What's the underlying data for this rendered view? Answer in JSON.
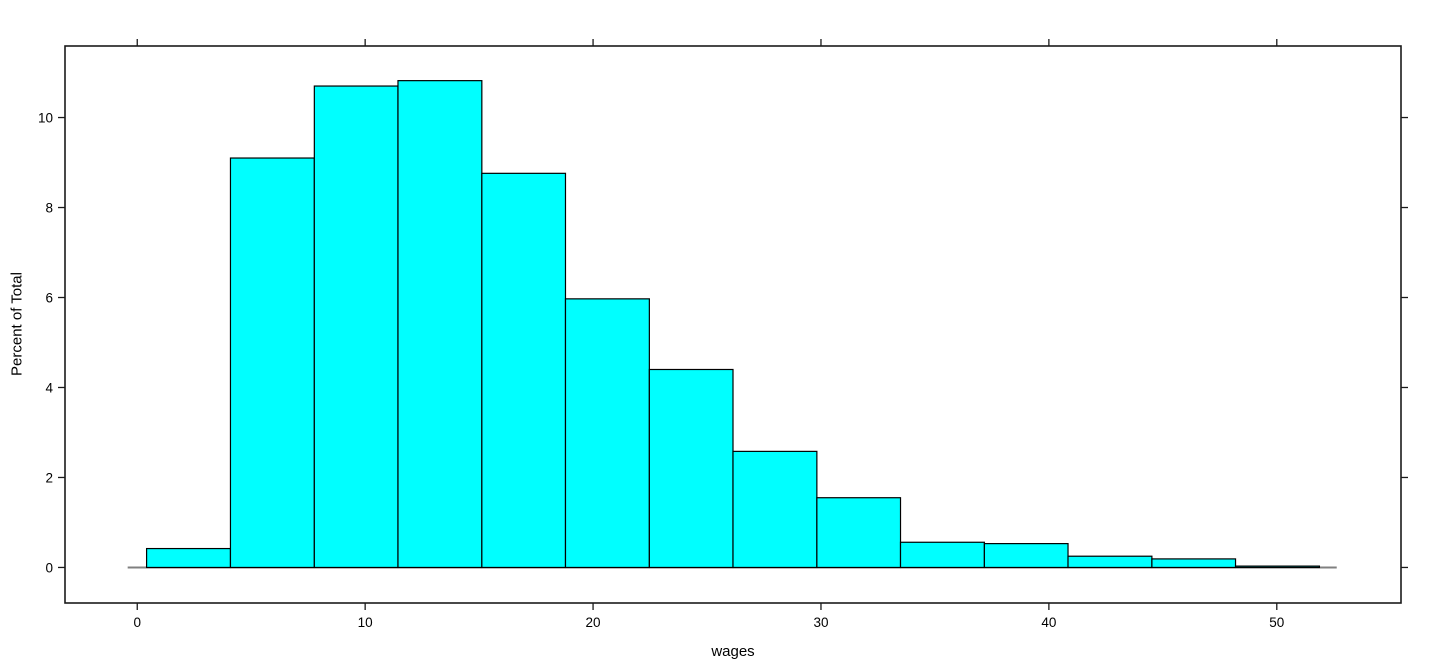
{
  "figure": {
    "background": "#FFFFFF"
  },
  "chart_data": {
    "type": "bar",
    "subtype": "histogram",
    "title": "",
    "xlabel": "wages",
    "ylabel": "Percent of Total",
    "bin_edges": [
      0.41,
      4.09,
      7.77,
      11.44,
      15.12,
      18.79,
      22.47,
      26.14,
      29.82,
      33.49,
      37.17,
      40.84,
      44.52,
      48.19,
      51.87
    ],
    "values": [
      0.42,
      9.1,
      10.7,
      10.82,
      8.76,
      5.97,
      4.4,
      2.58,
      1.55,
      0.56,
      0.53,
      0.25,
      0.19,
      0.03
    ],
    "x_ticks": [
      0,
      10,
      20,
      30,
      40,
      50
    ],
    "y_ticks": [
      0,
      2,
      4,
      6,
      8,
      10
    ],
    "xlim": [
      -3.17,
      55.45
    ],
    "ylim": [
      -0.79,
      11.59
    ],
    "baseline_extent": [
      -0.42,
      52.63
    ],
    "grid": "off",
    "legend": "none",
    "colors": {
      "bar_fill": "#00FFFF",
      "bar_border": "#000000",
      "panel_border": "#1a1a1a",
      "baseline": "#808080",
      "tick": "#1a1a1a",
      "text": "#000000",
      "background": "#FFFFFF"
    }
  }
}
